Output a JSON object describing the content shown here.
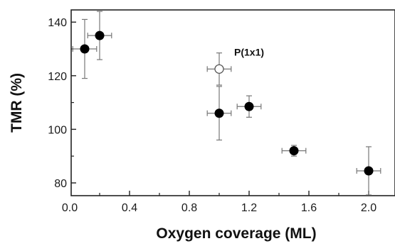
{
  "chart_data": {
    "type": "scatter",
    "title": "",
    "xlabel": "Oxygen coverage (ML)",
    "ylabel": "TMR (%)",
    "xlim": [
      0.0,
      2.15
    ],
    "ylim": [
      75,
      145
    ],
    "xticks": [
      0.0,
      0.4,
      0.8,
      1.2,
      1.6,
      2.0
    ],
    "xtick_labels": [
      "0.0",
      "0.4",
      "0.8",
      "1.2",
      "1.6",
      "2.0"
    ],
    "yticks": [
      80,
      100,
      120,
      140
    ],
    "ytick_labels": [
      "80",
      "100",
      "120",
      "140"
    ],
    "grid": false,
    "series": [
      {
        "marker": "filled-circle",
        "points": [
          {
            "x": 0.1,
            "y": 130,
            "xerr": 0.08,
            "yerr": 11
          },
          {
            "x": 0.2,
            "y": 135,
            "xerr": 0.08,
            "yerr": 9
          },
          {
            "x": 1.0,
            "y": 106,
            "xerr": 0.08,
            "yerr": 10
          },
          {
            "x": 1.2,
            "y": 108.5,
            "xerr": 0.08,
            "yerr": 4
          },
          {
            "x": 1.5,
            "y": 92,
            "xerr": 0.08,
            "yerr": 2
          },
          {
            "x": 2.0,
            "y": 84.5,
            "xerr": 0.08,
            "yerr": 9
          }
        ]
      },
      {
        "marker": "open-circle",
        "points": [
          {
            "x": 1.0,
            "y": 122.5,
            "xerr": 0.08,
            "yerr": 6
          }
        ]
      }
    ],
    "annotations": [
      {
        "text": "P(1x1)",
        "x": 1.1,
        "y": 127.5
      }
    ]
  }
}
